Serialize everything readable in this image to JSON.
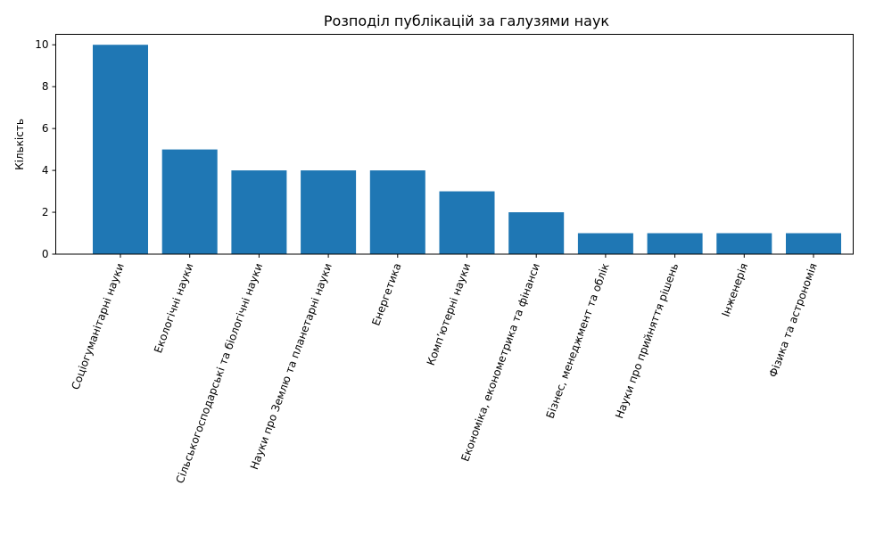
{
  "chart_data": {
    "type": "bar",
    "title": "Розподіл публікацій за галузями наук",
    "xlabel": "",
    "ylabel": "Кількість",
    "ylim": [
      0,
      10.5
    ],
    "yticks": [
      0,
      2,
      4,
      6,
      8,
      10
    ],
    "grid": false,
    "legend": null,
    "bar_color": "#1f77b4",
    "categories": [
      "Соціогуманітарні науки",
      "Екологічні науки",
      "Сільськогосподарські та біологічні науки",
      "Науки про Землю та планетарні науки",
      "Енергетика",
      "Комп’ютерні науки",
      "Економіка, економетрика та фінанси",
      "Бізнес, менеджмент та облік",
      "Науки про прийняття рішень",
      "Інженерія",
      "Фізика та астрономія"
    ],
    "values": [
      10,
      5,
      4,
      4,
      4,
      3,
      2,
      1,
      1,
      1,
      1
    ]
  }
}
